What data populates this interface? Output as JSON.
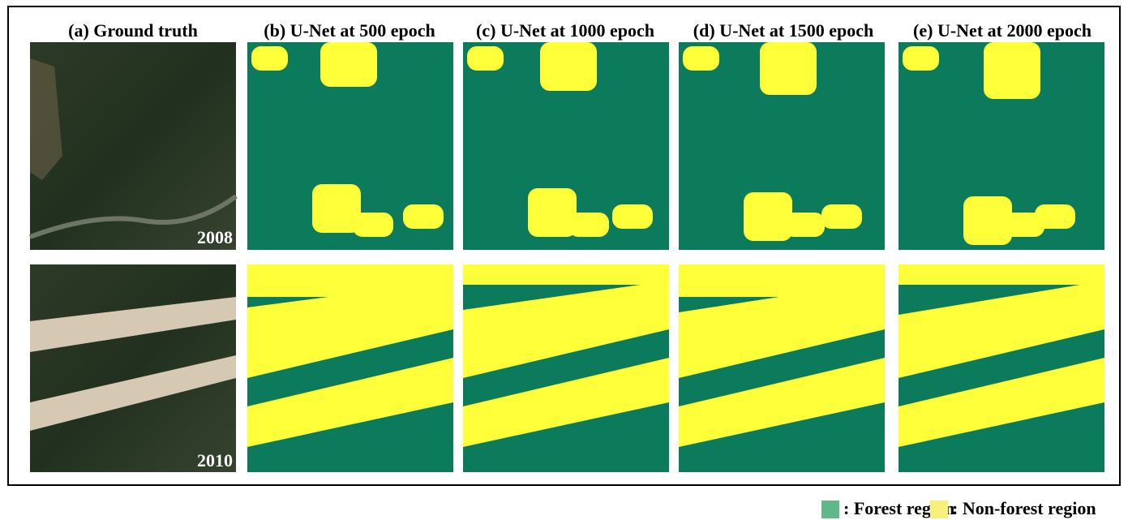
{
  "panels": [
    {
      "title": "(a) Ground truth"
    },
    {
      "title": "(b) U-Net at 500 epoch"
    },
    {
      "title": "(c) U-Net at 1000 epoch"
    },
    {
      "title": "(d) U-Net at 1500 epoch"
    },
    {
      "title": "(e) U-Net at 2000 epoch"
    }
  ],
  "years": [
    "2008",
    "2010"
  ],
  "legend": [
    {
      "label": ": Forest region",
      "color": "#5fb88a"
    },
    {
      "label": ": Non-forest region",
      "color": "#f7f07a"
    }
  ]
}
